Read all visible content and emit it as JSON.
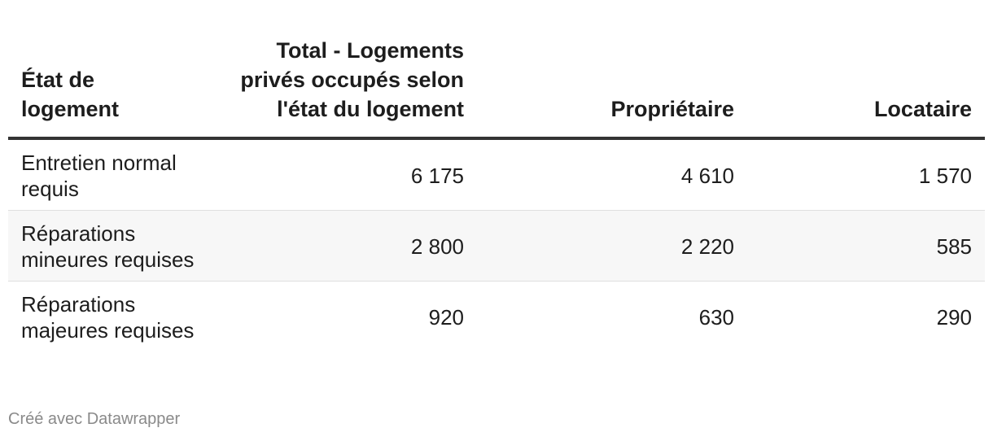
{
  "chart_data": {
    "type": "table",
    "columns": [
      "État de logement",
      "Total - Logements privés occupés selon l'état du logement",
      "Propriétaire",
      "Locataire"
    ],
    "rows": [
      {
        "label": "Entretien normal requis",
        "values": [
          "6 175",
          "4 610",
          "1 570"
        ]
      },
      {
        "label": "Réparations mineures requises",
        "values": [
          "2 800",
          "2 220",
          "585"
        ]
      },
      {
        "label": "Réparations majeures requises",
        "values": [
          "920",
          "630",
          "290"
        ]
      }
    ]
  },
  "footer": {
    "credit": "Créé avec Datawrapper"
  }
}
